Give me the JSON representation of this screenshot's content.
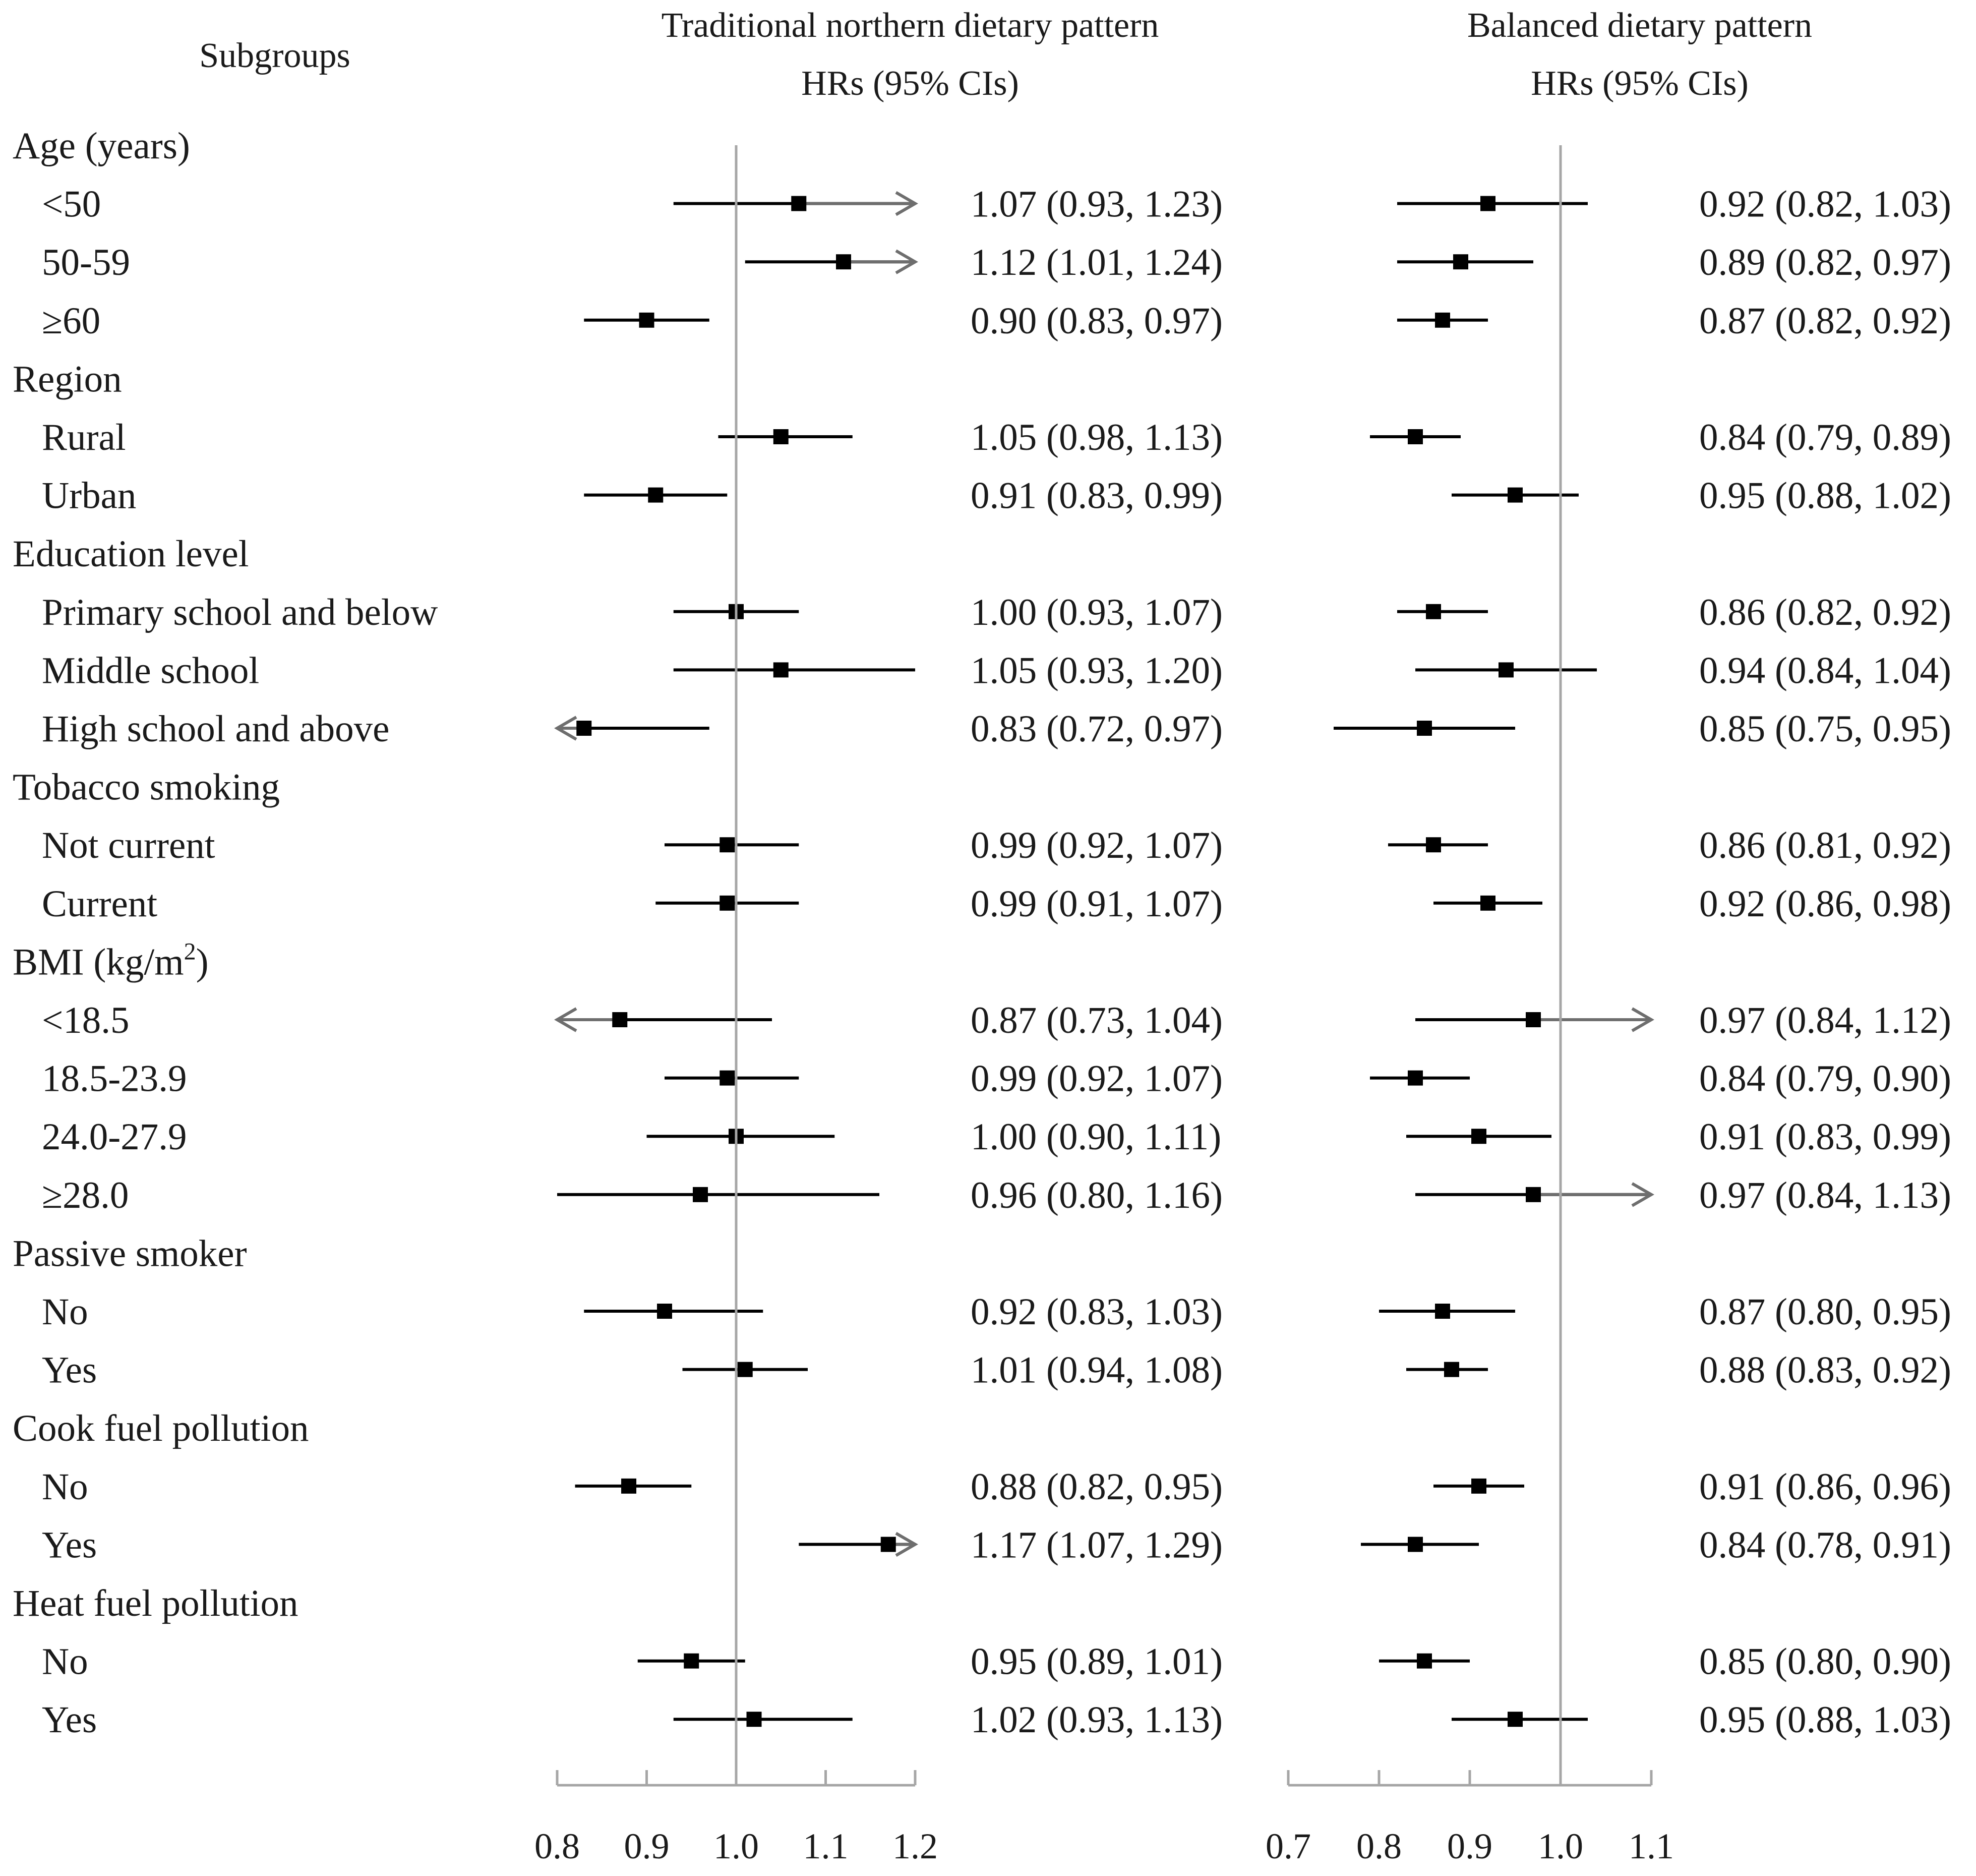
{
  "chart_data": {
    "type": "forest",
    "subgroups_header": "Subgroups",
    "panels": [
      {
        "title": "Traditional northern dietary pattern",
        "subtitle": "HRs (95% CIs)",
        "xlim": [
          0.8,
          1.2
        ],
        "ticks": [
          "0.8",
          "0.9",
          "1.0",
          "1.1",
          "1.2"
        ],
        "reference": 1.0
      },
      {
        "title": "Balanced dietary pattern",
        "subtitle": "HRs (95% CIs)",
        "xlim": [
          0.7,
          1.1
        ],
        "ticks": [
          "0.7",
          "0.8",
          "0.9",
          "1.0",
          "1.1"
        ],
        "reference": 1.0
      }
    ],
    "rows": [
      {
        "kind": "header",
        "label": "Age (years)"
      },
      {
        "kind": "item",
        "label": "<50",
        "est": [
          [
            1.07,
            0.93,
            1.23
          ],
          [
            0.92,
            0.82,
            1.03
          ]
        ],
        "text": [
          "1.07 (0.93, 1.23)",
          "0.92 (0.82, 1.03)"
        ]
      },
      {
        "kind": "item",
        "label": "50-59",
        "est": [
          [
            1.12,
            1.01,
            1.24
          ],
          [
            0.89,
            0.82,
            0.97
          ]
        ],
        "text": [
          "1.12 (1.01, 1.24)",
          "0.89 (0.82, 0.97)"
        ]
      },
      {
        "kind": "item",
        "label": "≥60",
        "est": [
          [
            0.9,
            0.83,
            0.97
          ],
          [
            0.87,
            0.82,
            0.92
          ]
        ],
        "text": [
          "0.90 (0.83, 0.97)",
          "0.87 (0.82, 0.92)"
        ]
      },
      {
        "kind": "header",
        "label": "Region"
      },
      {
        "kind": "item",
        "label": "Rural",
        "est": [
          [
            1.05,
            0.98,
            1.13
          ],
          [
            0.84,
            0.79,
            0.89
          ]
        ],
        "text": [
          "1.05 (0.98, 1.13)",
          "0.84 (0.79, 0.89)"
        ]
      },
      {
        "kind": "item",
        "label": "Urban",
        "est": [
          [
            0.91,
            0.83,
            0.99
          ],
          [
            0.95,
            0.88,
            1.02
          ]
        ],
        "text": [
          "0.91 (0.83, 0.99)",
          "0.95 (0.88, 1.02)"
        ]
      },
      {
        "kind": "header",
        "label": "Education level"
      },
      {
        "kind": "item",
        "label": "Primary school and below",
        "est": [
          [
            1.0,
            0.93,
            1.07
          ],
          [
            0.86,
            0.82,
            0.92
          ]
        ],
        "text": [
          "1.00 (0.93, 1.07)",
          "0.86 (0.82, 0.92)"
        ]
      },
      {
        "kind": "item",
        "label": "Middle school",
        "est": [
          [
            1.05,
            0.93,
            1.2
          ],
          [
            0.94,
            0.84,
            1.04
          ]
        ],
        "text": [
          "1.05 (0.93, 1.20)",
          "0.94 (0.84, 1.04)"
        ]
      },
      {
        "kind": "item",
        "label": "High school and above",
        "est": [
          [
            0.83,
            0.72,
            0.97
          ],
          [
            0.85,
            0.75,
            0.95
          ]
        ],
        "text": [
          "0.83 (0.72, 0.97)",
          "0.85 (0.75, 0.95)"
        ]
      },
      {
        "kind": "header",
        "label": "Tobacco smoking"
      },
      {
        "kind": "item",
        "label": "Not current",
        "est": [
          [
            0.99,
            0.92,
            1.07
          ],
          [
            0.86,
            0.81,
            0.92
          ]
        ],
        "text": [
          "0.99 (0.92, 1.07)",
          "0.86 (0.81, 0.92)"
        ]
      },
      {
        "kind": "item",
        "label": "Current",
        "est": [
          [
            0.99,
            0.91,
            1.07
          ],
          [
            0.92,
            0.86,
            0.98
          ]
        ],
        "text": [
          "0.99 (0.91, 1.07)",
          "0.92 (0.86, 0.98)"
        ]
      },
      {
        "kind": "header",
        "label": "BMI (kg/m",
        "sup": "2",
        "suffix": ")"
      },
      {
        "kind": "item",
        "label": "<18.5",
        "est": [
          [
            0.87,
            0.73,
            1.04
          ],
          [
            0.97,
            0.84,
            1.12
          ]
        ],
        "text": [
          "0.87 (0.73, 1.04)",
          "0.97 (0.84, 1.12)"
        ]
      },
      {
        "kind": "item",
        "label": "18.5-23.9",
        "est": [
          [
            0.99,
            0.92,
            1.07
          ],
          [
            0.84,
            0.79,
            0.9
          ]
        ],
        "text": [
          "0.99 (0.92, 1.07)",
          "0.84 (0.79, 0.90)"
        ]
      },
      {
        "kind": "item",
        "label": "24.0-27.9",
        "est": [
          [
            1.0,
            0.9,
            1.11
          ],
          [
            0.91,
            0.83,
            0.99
          ]
        ],
        "text": [
          "1.00 (0.90, 1.11)",
          "0.91 (0.83, 0.99)"
        ]
      },
      {
        "kind": "item",
        "label": "≥28.0",
        "est": [
          [
            0.96,
            0.8,
            1.16
          ],
          [
            0.97,
            0.84,
            1.13
          ]
        ],
        "text": [
          "0.96 (0.80, 1.16)",
          "0.97 (0.84, 1.13)"
        ]
      },
      {
        "kind": "header",
        "label": "Passive smoker"
      },
      {
        "kind": "item",
        "label": "No",
        "est": [
          [
            0.92,
            0.83,
            1.03
          ],
          [
            0.87,
            0.8,
            0.95
          ]
        ],
        "text": [
          "0.92 (0.83, 1.03)",
          "0.87 (0.80, 0.95)"
        ]
      },
      {
        "kind": "item",
        "label": "Yes",
        "est": [
          [
            1.01,
            0.94,
            1.08
          ],
          [
            0.88,
            0.83,
            0.92
          ]
        ],
        "text": [
          "1.01 (0.94, 1.08)",
          "0.88 (0.83, 0.92)"
        ]
      },
      {
        "kind": "header",
        "label": "Cook fuel pollution"
      },
      {
        "kind": "item",
        "label": "No",
        "est": [
          [
            0.88,
            0.82,
            0.95
          ],
          [
            0.91,
            0.86,
            0.96
          ]
        ],
        "text": [
          "0.88 (0.82, 0.95)",
          "0.91 (0.86, 0.96)"
        ]
      },
      {
        "kind": "item",
        "label": "Yes",
        "est": [
          [
            1.17,
            1.07,
            1.29
          ],
          [
            0.84,
            0.78,
            0.91
          ]
        ],
        "text": [
          "1.17 (1.07, 1.29)",
          "0.84 (0.78, 0.91)"
        ]
      },
      {
        "kind": "header",
        "label": "Heat fuel pollution"
      },
      {
        "kind": "item",
        "label": "No",
        "est": [
          [
            0.95,
            0.89,
            1.01
          ],
          [
            0.85,
            0.8,
            0.9
          ]
        ],
        "text": [
          "0.95 (0.89, 1.01)",
          "0.85 (0.80, 0.90)"
        ]
      },
      {
        "kind": "item",
        "label": "Yes",
        "est": [
          [
            1.02,
            0.93,
            1.13
          ],
          [
            0.95,
            0.88,
            1.03
          ]
        ],
        "text": [
          "1.02 (0.93, 1.13)",
          "0.95 (0.88, 1.03)"
        ]
      }
    ]
  },
  "colors": {
    "marker": "#000000",
    "ci_line": "#000000",
    "arrow": "#6e6e6e",
    "reference": "#a6a6a6",
    "axis": "#a6a6a6",
    "text": "#1a1a1a"
  }
}
